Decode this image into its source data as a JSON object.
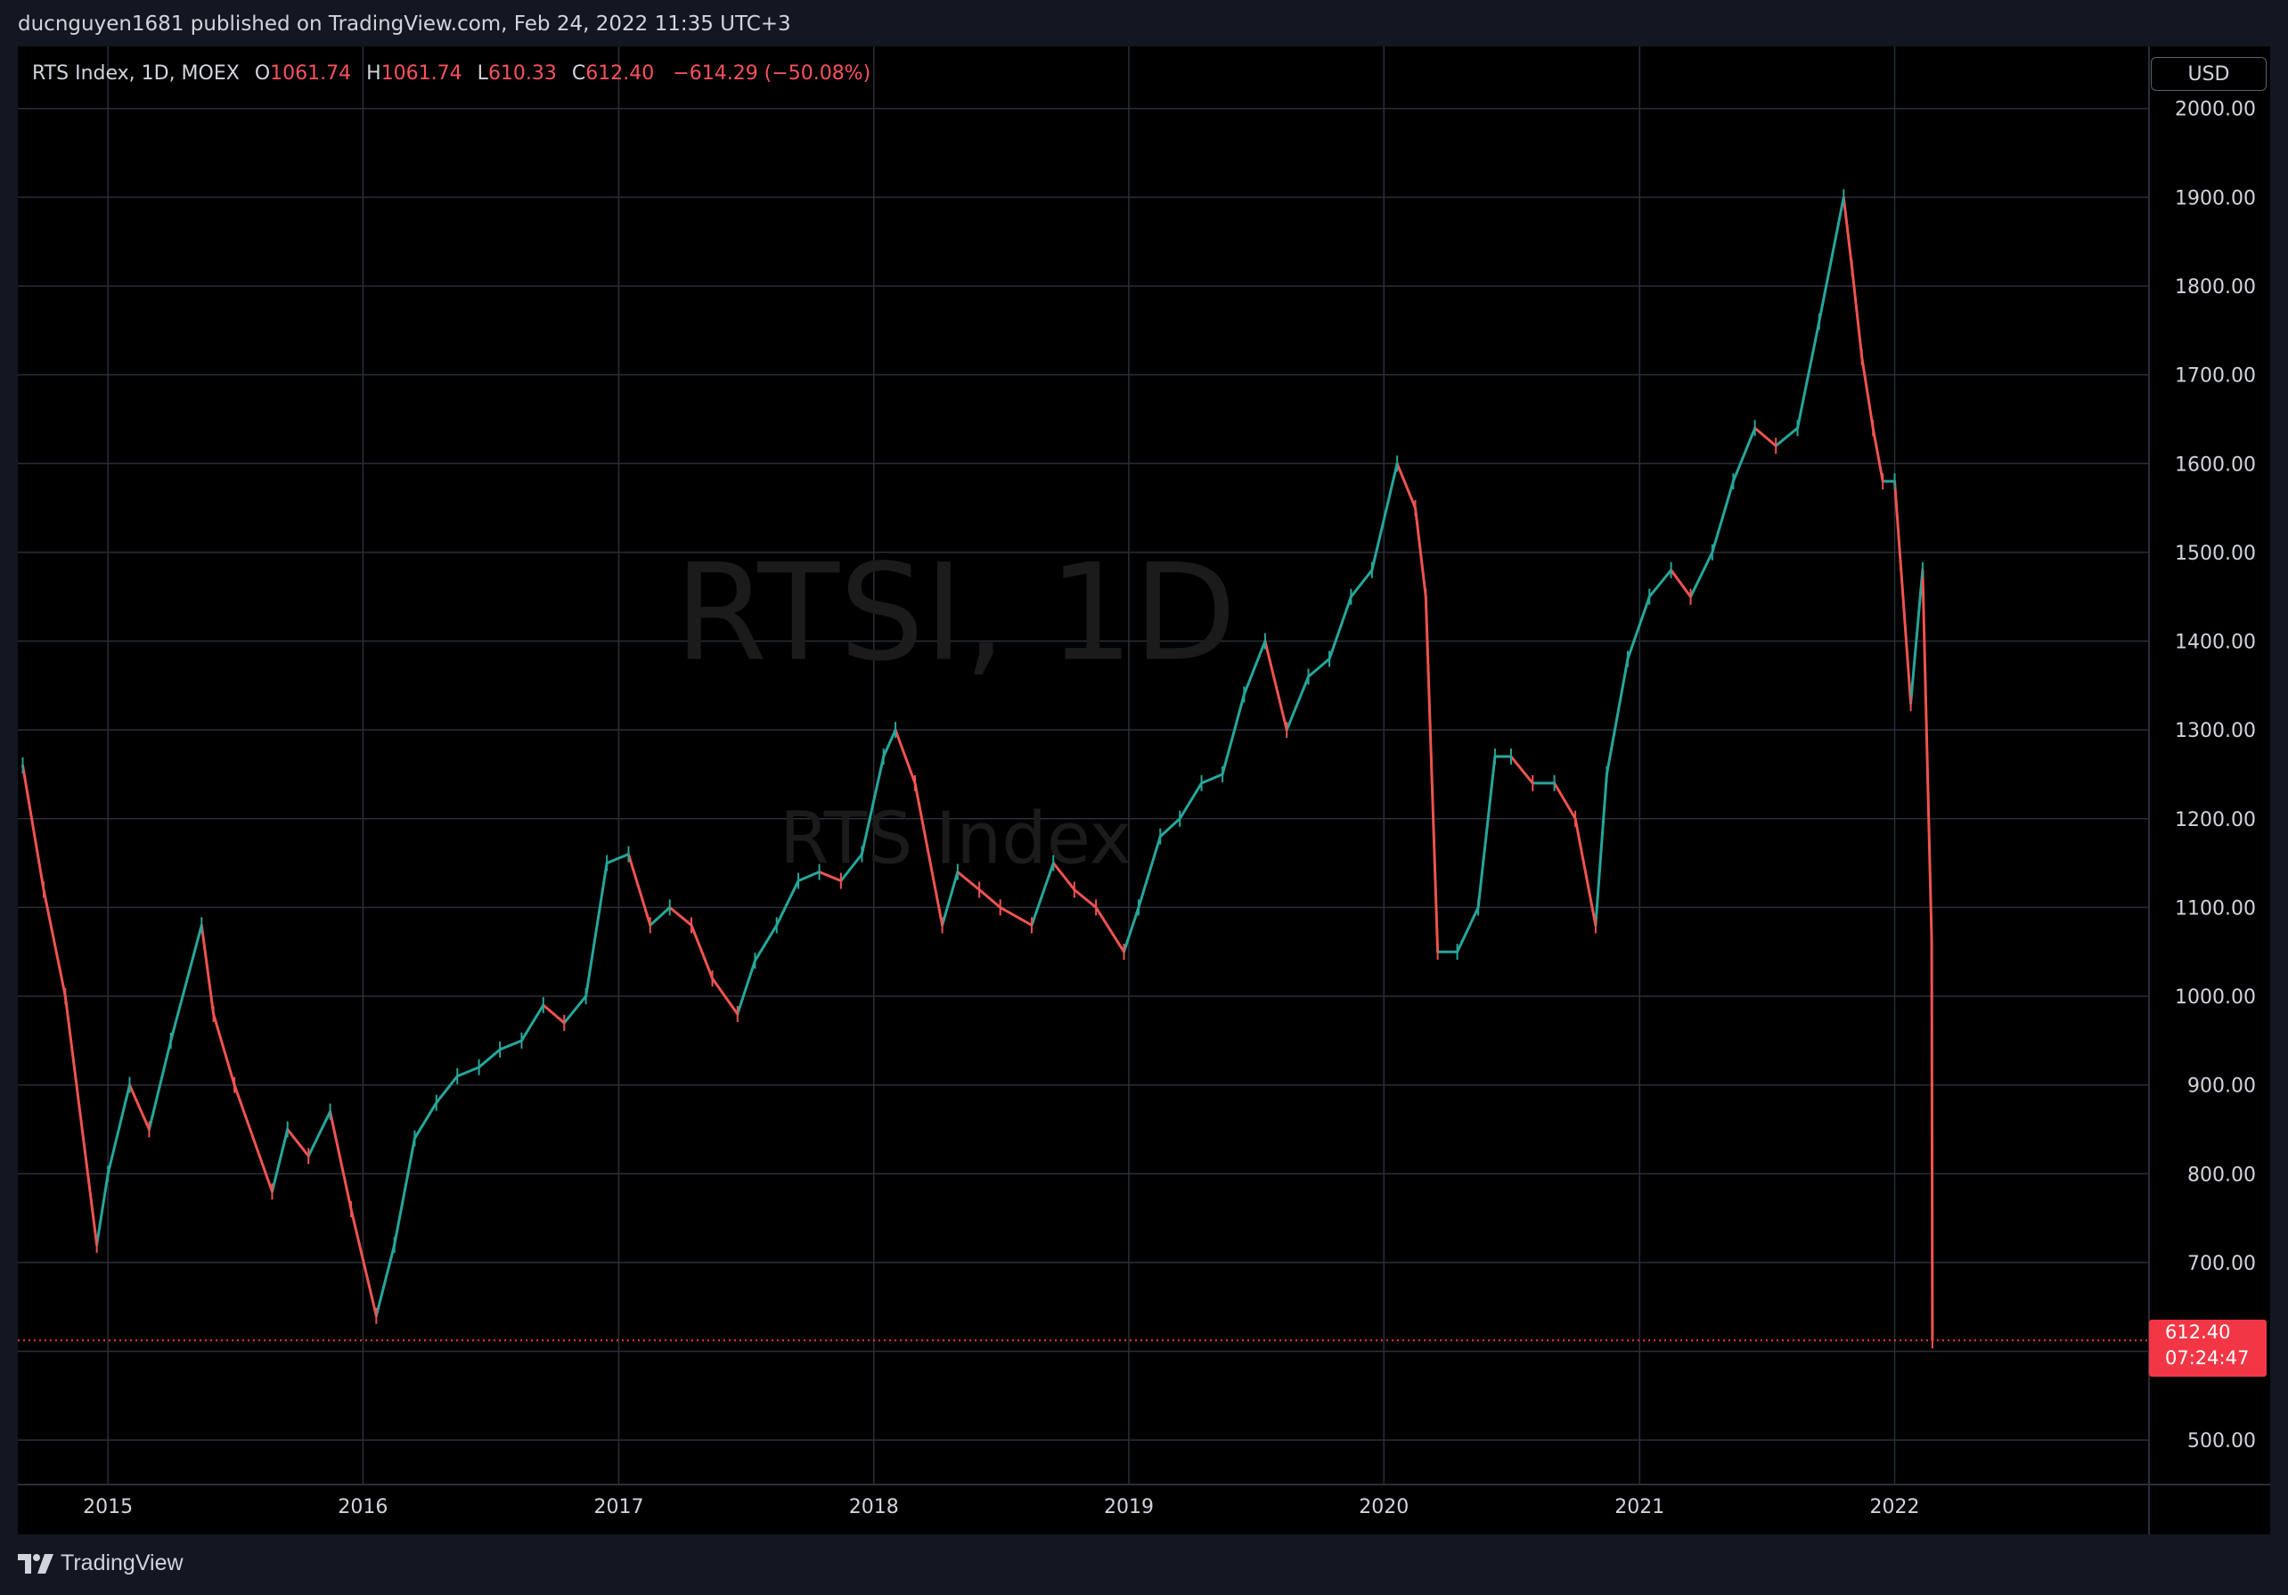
{
  "header": {
    "published": "ducnguyen1681 published on TradingView.com, Feb 24, 2022 11:35 UTC+3"
  },
  "legend": {
    "symbol": "RTS Index, 1D, MOEX",
    "open_label": "O",
    "open": "1061.74",
    "high_label": "H",
    "high": "1061.74",
    "low_label": "L",
    "low": "610.33",
    "close_label": "C",
    "close": "612.40",
    "change": "−614.29 (−50.08%)"
  },
  "currency": "USD",
  "watermark": {
    "title": "RTSI, 1D",
    "subtitle": "RTS Index"
  },
  "last_price": {
    "value": "612.40",
    "countdown": "07:24:47"
  },
  "brand": {
    "name": "TradingView"
  },
  "colors": {
    "up": "#26a69a",
    "down": "#ef5350",
    "background": "#000000",
    "grid": "#2a2e39",
    "price_line": "#f23645"
  },
  "chart_data": {
    "type": "line",
    "series": [
      {
        "x": [
          "2014-09-01",
          "2014-10-01",
          "2014-11-01",
          "2014-12-16",
          "2015-01-01",
          "2015-02-01",
          "2015-03-01",
          "2015-04-01",
          "2015-05-15",
          "2015-06-01",
          "2015-07-01",
          "2015-08-24",
          "2015-09-15",
          "2015-10-15",
          "2015-11-15",
          "2015-12-15",
          "2016-01-20",
          "2016-02-15",
          "2016-03-15",
          "2016-04-15",
          "2016-05-15",
          "2016-06-15",
          "2016-07-15",
          "2016-08-15",
          "2016-09-15",
          "2016-10-15",
          "2016-11-15",
          "2016-12-15",
          "2017-01-15",
          "2017-02-15",
          "2017-03-15",
          "2017-04-15",
          "2017-05-15",
          "2017-06-20",
          "2017-07-15",
          "2017-08-15",
          "2017-09-15",
          "2017-10-15",
          "2017-11-15",
          "2017-12-15",
          "2018-01-15",
          "2018-02-01",
          "2018-03-01",
          "2018-04-09",
          "2018-05-01",
          "2018-06-01",
          "2018-07-01",
          "2018-08-15",
          "2018-09-15",
          "2018-10-15",
          "2018-11-15",
          "2018-12-25",
          "2019-01-15",
          "2019-02-15",
          "2019-03-15",
          "2019-04-15",
          "2019-05-15",
          "2019-06-15",
          "2019-07-15",
          "2019-08-15",
          "2019-09-15",
          "2019-10-15",
          "2019-11-15",
          "2019-12-15",
          "2020-01-20",
          "2020-02-15",
          "2020-03-01",
          "2020-03-18",
          "2020-04-15",
          "2020-05-15",
          "2020-06-08",
          "2020-07-01",
          "2020-08-01",
          "2020-09-01",
          "2020-10-01",
          "2020-10-30",
          "2020-11-15",
          "2020-12-15",
          "2021-01-15",
          "2021-02-15",
          "2021-03-15",
          "2021-04-15",
          "2021-05-15",
          "2021-06-15",
          "2021-07-15",
          "2021-08-15",
          "2021-09-15",
          "2021-10-20",
          "2021-11-01",
          "2021-11-15",
          "2021-12-01",
          "2021-12-15",
          "2022-01-01",
          "2022-01-24",
          "2022-02-10",
          "2022-02-23",
          "2022-02-24"
        ],
        "values": [
          1260,
          1120,
          1000,
          720,
          800,
          900,
          850,
          950,
          1080,
          980,
          900,
          780,
          850,
          820,
          870,
          760,
          640,
          720,
          840,
          880,
          910,
          920,
          940,
          950,
          990,
          970,
          1000,
          1150,
          1160,
          1080,
          1100,
          1080,
          1020,
          980,
          1040,
          1080,
          1130,
          1140,
          1130,
          1160,
          1270,
          1300,
          1240,
          1080,
          1140,
          1120,
          1100,
          1080,
          1150,
          1120,
          1100,
          1050,
          1100,
          1180,
          1200,
          1240,
          1250,
          1340,
          1400,
          1300,
          1360,
          1380,
          1450,
          1480,
          1600,
          1550,
          1450,
          1050,
          1050,
          1100,
          1270,
          1270,
          1240,
          1240,
          1200,
          1080,
          1250,
          1380,
          1450,
          1480,
          1450,
          1500,
          1580,
          1640,
          1620,
          1640,
          1760,
          1900,
          1820,
          1720,
          1640,
          1580,
          1580,
          1330,
          1480,
          1061.74,
          612.4
        ]
      }
    ],
    "xlabel": "",
    "ylabel": "",
    "x_ticks": [
      "2015",
      "2016",
      "2017",
      "2018",
      "2019",
      "2020",
      "2021",
      "2022"
    ],
    "y_ticks": [
      "2000.00",
      "1900.00",
      "1800.00",
      "1700.00",
      "1600.00",
      "1500.00",
      "1400.00",
      "1300.00",
      "1200.00",
      "1100.00",
      "1000.00",
      "900.00",
      "800.00",
      "700.00",
      "500.00"
    ],
    "ylim": [
      450,
      2070
    ],
    "xlim": [
      "2014-08-25",
      "2022-12-31"
    ],
    "grid": true,
    "legend": "top-left"
  }
}
